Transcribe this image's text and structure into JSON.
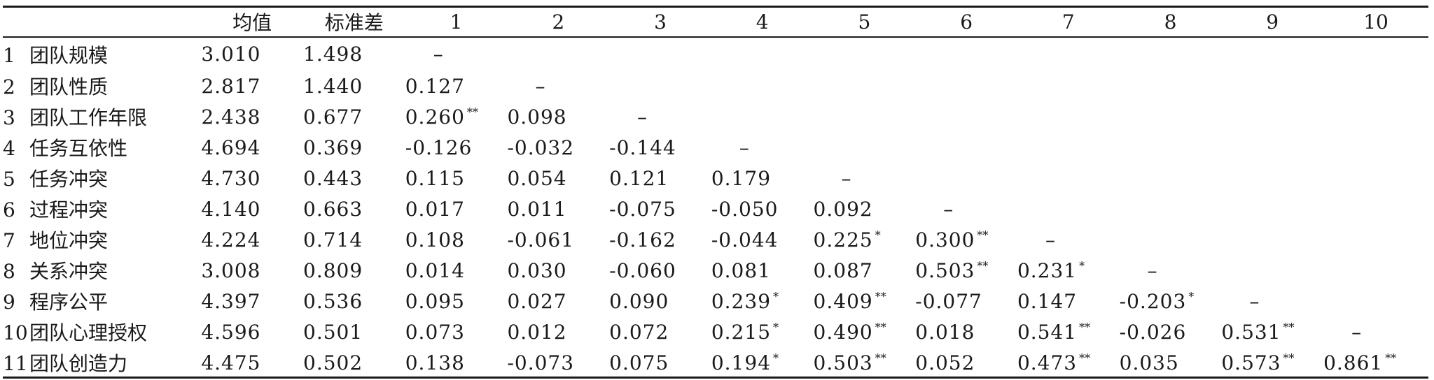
{
  "headers": [
    "",
    "均值",
    "标准差",
    "1",
    "2",
    "3",
    "4",
    "5",
    "6",
    "7",
    "8",
    "9",
    "10"
  ],
  "rows": [
    {
      "idx": "1",
      "name": "团队规模",
      "mean": "3.010",
      "sd": "1.498",
      "cells": [
        {
          "v": "–",
          "s": ""
        }
      ]
    },
    {
      "idx": "2",
      "name": "团队性质",
      "mean": "2.817",
      "sd": "1.440",
      "cells": [
        {
          "v": "0.127",
          "s": ""
        },
        {
          "v": "–",
          "s": ""
        }
      ]
    },
    {
      "idx": "3",
      "name": "团队工作年限",
      "mean": "2.438",
      "sd": "0.677",
      "cells": [
        {
          "v": "0.260",
          "s": "**"
        },
        {
          "v": "0.098",
          "s": ""
        },
        {
          "v": "–",
          "s": ""
        }
      ]
    },
    {
      "idx": "4",
      "name": "任务互依性",
      "mean": "4.694",
      "sd": "0.369",
      "cells": [
        {
          "v": "-0.126",
          "s": ""
        },
        {
          "v": "-0.032",
          "s": ""
        },
        {
          "v": "-0.144",
          "s": ""
        },
        {
          "v": "–",
          "s": ""
        }
      ]
    },
    {
      "idx": "5",
      "name": "任务冲突",
      "mean": "4.730",
      "sd": "0.443",
      "cells": [
        {
          "v": "0.115",
          "s": ""
        },
        {
          "v": "0.054",
          "s": ""
        },
        {
          "v": "0.121",
          "s": ""
        },
        {
          "v": "0.179",
          "s": ""
        },
        {
          "v": "–",
          "s": ""
        }
      ]
    },
    {
      "idx": "6",
      "name": "过程冲突",
      "mean": "4.140",
      "sd": "0.663",
      "cells": [
        {
          "v": "0.017",
          "s": ""
        },
        {
          "v": "0.011",
          "s": ""
        },
        {
          "v": "-0.075",
          "s": ""
        },
        {
          "v": "-0.050",
          "s": ""
        },
        {
          "v": "0.092",
          "s": ""
        },
        {
          "v": "–",
          "s": ""
        }
      ]
    },
    {
      "idx": "7",
      "name": "地位冲突",
      "mean": "4.224",
      "sd": "0.714",
      "cells": [
        {
          "v": "0.108",
          "s": ""
        },
        {
          "v": "-0.061",
          "s": ""
        },
        {
          "v": "-0.162",
          "s": ""
        },
        {
          "v": "-0.044",
          "s": ""
        },
        {
          "v": "0.225",
          "s": "*"
        },
        {
          "v": "0.300",
          "s": "**"
        },
        {
          "v": "–",
          "s": ""
        }
      ]
    },
    {
      "idx": "8",
      "name": "关系冲突",
      "mean": "3.008",
      "sd": "0.809",
      "cells": [
        {
          "v": "0.014",
          "s": ""
        },
        {
          "v": "0.030",
          "s": ""
        },
        {
          "v": "-0.060",
          "s": ""
        },
        {
          "v": "0.081",
          "s": ""
        },
        {
          "v": "0.087",
          "s": ""
        },
        {
          "v": "0.503",
          "s": "**"
        },
        {
          "v": "0.231",
          "s": "*"
        },
        {
          "v": "–",
          "s": ""
        }
      ]
    },
    {
      "idx": "9",
      "name": "程序公平",
      "mean": "4.397",
      "sd": "0.536",
      "cells": [
        {
          "v": "0.095",
          "s": ""
        },
        {
          "v": "0.027",
          "s": ""
        },
        {
          "v": "0.090",
          "s": ""
        },
        {
          "v": "0.239",
          "s": "*"
        },
        {
          "v": "0.409",
          "s": "**"
        },
        {
          "v": "-0.077",
          "s": ""
        },
        {
          "v": "0.147",
          "s": ""
        },
        {
          "v": "-0.203",
          "s": "*"
        },
        {
          "v": "–",
          "s": ""
        }
      ]
    },
    {
      "idx": "10",
      "name": "团队心理授权",
      "mean": "4.596",
      "sd": "0.501",
      "cells": [
        {
          "v": "0.073",
          "s": ""
        },
        {
          "v": "0.012",
          "s": ""
        },
        {
          "v": "0.072",
          "s": ""
        },
        {
          "v": "0.215",
          "s": "*"
        },
        {
          "v": "0.490",
          "s": "**"
        },
        {
          "v": "0.018",
          "s": ""
        },
        {
          "v": "0.541",
          "s": "**"
        },
        {
          "v": "-0.026",
          "s": ""
        },
        {
          "v": "0.531",
          "s": "**"
        },
        {
          "v": "–",
          "s": ""
        }
      ]
    },
    {
      "idx": "11",
      "name": "团队创造力",
      "mean": "4.475",
      "sd": "0.502",
      "cells": [
        {
          "v": "0.138",
          "s": ""
        },
        {
          "v": "-0.073",
          "s": ""
        },
        {
          "v": "0.075",
          "s": ""
        },
        {
          "v": "0.194",
          "s": "*"
        },
        {
          "v": "0.503",
          "s": "**"
        },
        {
          "v": "0.052",
          "s": ""
        },
        {
          "v": "0.473",
          "s": "**"
        },
        {
          "v": "0.035",
          "s": ""
        },
        {
          "v": "0.573",
          "s": "**"
        },
        {
          "v": "0.861",
          "s": "**"
        }
      ]
    }
  ]
}
